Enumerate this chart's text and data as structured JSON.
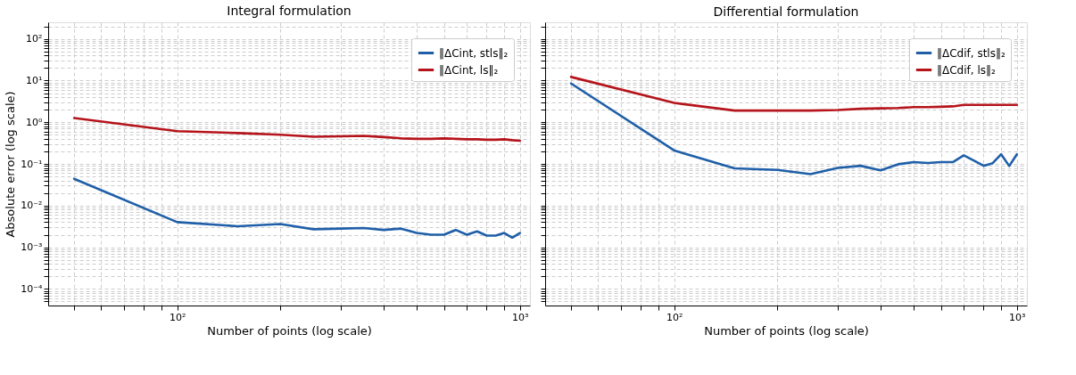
{
  "chart_data": [
    {
      "type": "line",
      "title": "Integral formulation",
      "xlabel": "Number of points (log scale)",
      "ylabel": "Absolute error (log scale)",
      "log": "xy",
      "grid": true,
      "legend": "top right",
      "marker": "none",
      "line_style": "solid",
      "x": [
        50,
        100,
        150,
        200,
        250,
        300,
        350,
        400,
        450,
        500,
        550,
        600,
        650,
        700,
        750,
        800,
        850,
        900,
        950,
        1000
      ],
      "series": [
        {
          "name": "‖ΔCint, stls‖₂",
          "color": "#1f5fa8",
          "values": [
            0.044,
            0.004,
            0.0032,
            0.0036,
            0.0027,
            0.0028,
            0.0029,
            0.0026,
            0.0028,
            0.0022,
            0.002,
            0.002,
            0.0026,
            0.002,
            0.0024,
            0.0019,
            0.0019,
            0.0022,
            0.0017,
            0.0022
          ]
        },
        {
          "name": "‖ΔCint, ls‖₂",
          "color": "#b5141b",
          "values": [
            1.26,
            0.61,
            0.55,
            0.5,
            0.45,
            0.46,
            0.47,
            0.44,
            0.41,
            0.4,
            0.4,
            0.41,
            0.4,
            0.39,
            0.39,
            0.38,
            0.38,
            0.39,
            0.37,
            0.36
          ]
        }
      ],
      "xlim": [
        42,
        1070
      ],
      "xticks": [
        {
          "value": 50,
          "label": null
        },
        {
          "value": 60,
          "label": null
        },
        {
          "value": 70,
          "label": null
        },
        {
          "value": 80,
          "label": null
        },
        {
          "value": 90,
          "label": null
        },
        {
          "value": 100,
          "label": "10²"
        },
        {
          "value": 200,
          "label": null
        },
        {
          "value": 300,
          "label": null
        },
        {
          "value": 400,
          "label": null
        },
        {
          "value": 500,
          "label": null
        },
        {
          "value": 600,
          "label": null
        },
        {
          "value": 700,
          "label": null
        },
        {
          "value": 800,
          "label": null
        },
        {
          "value": 900,
          "label": null
        },
        {
          "value": 1000,
          "label": "10³"
        }
      ],
      "ylim": [
        4e-05,
        250
      ],
      "yticks": [
        {
          "value": 5e-05,
          "label": null
        },
        {
          "value": 6e-05,
          "label": null
        },
        {
          "value": 7e-05,
          "label": null
        },
        {
          "value": 8e-05,
          "label": null
        },
        {
          "value": 9e-05,
          "label": null
        },
        {
          "value": 0.0001,
          "label": "10⁻⁴"
        },
        {
          "value": 0.0002,
          "label": null
        },
        {
          "value": 0.0003,
          "label": null
        },
        {
          "value": 0.0004,
          "label": null
        },
        {
          "value": 0.0005,
          "label": null
        },
        {
          "value": 0.0006,
          "label": null
        },
        {
          "value": 0.0007,
          "label": null
        },
        {
          "value": 0.0008,
          "label": null
        },
        {
          "value": 0.0009,
          "label": null
        },
        {
          "value": 0.001,
          "label": "10⁻³"
        },
        {
          "value": 0.002,
          "label": null
        },
        {
          "value": 0.003,
          "label": null
        },
        {
          "value": 0.004,
          "label": null
        },
        {
          "value": 0.005,
          "label": null
        },
        {
          "value": 0.006,
          "label": null
        },
        {
          "value": 0.007,
          "label": null
        },
        {
          "value": 0.008,
          "label": null
        },
        {
          "value": 0.009,
          "label": null
        },
        {
          "value": 0.01,
          "label": "10⁻²"
        },
        {
          "value": 0.02,
          "label": null
        },
        {
          "value": 0.03,
          "label": null
        },
        {
          "value": 0.04,
          "label": null
        },
        {
          "value": 0.05,
          "label": null
        },
        {
          "value": 0.06,
          "label": null
        },
        {
          "value": 0.07,
          "label": null
        },
        {
          "value": 0.08,
          "label": null
        },
        {
          "value": 0.09,
          "label": null
        },
        {
          "value": 0.1,
          "label": "10⁻¹"
        },
        {
          "value": 0.2,
          "label": null
        },
        {
          "value": 0.3,
          "label": null
        },
        {
          "value": 0.4,
          "label": null
        },
        {
          "value": 0.5,
          "label": null
        },
        {
          "value": 0.6,
          "label": null
        },
        {
          "value": 0.7,
          "label": null
        },
        {
          "value": 0.8,
          "label": null
        },
        {
          "value": 0.9,
          "label": null
        },
        {
          "value": 1,
          "label": "10⁰"
        },
        {
          "value": 2,
          "label": null
        },
        {
          "value": 3,
          "label": null
        },
        {
          "value": 4,
          "label": null
        },
        {
          "value": 5,
          "label": null
        },
        {
          "value": 6,
          "label": null
        },
        {
          "value": 7,
          "label": null
        },
        {
          "value": 8,
          "label": null
        },
        {
          "value": 9,
          "label": null
        },
        {
          "value": 10,
          "label": "10¹"
        },
        {
          "value": 20,
          "label": null
        },
        {
          "value": 30,
          "label": null
        },
        {
          "value": 40,
          "label": null
        },
        {
          "value": 50,
          "label": null
        },
        {
          "value": 60,
          "label": null
        },
        {
          "value": 70,
          "label": null
        },
        {
          "value": 80,
          "label": null
        },
        {
          "value": 90,
          "label": null
        },
        {
          "value": 100,
          "label": "10²"
        },
        {
          "value": 200,
          "label": null
        }
      ]
    },
    {
      "type": "line",
      "title": "Differential formulation",
      "xlabel": "Number of points (log scale)",
      "log": "xy",
      "grid": true,
      "legend": "top right",
      "marker": "none",
      "line_style": "solid",
      "tick_labels": "x",
      "x": [
        50,
        100,
        150,
        200,
        250,
        300,
        350,
        400,
        450,
        500,
        550,
        600,
        650,
        700,
        750,
        800,
        850,
        900,
        950,
        1000
      ],
      "series": [
        {
          "name": "‖ΔCdif, stls‖₂",
          "color": "#1f5fa8",
          "values": [
            8.5,
            0.21,
            0.078,
            0.072,
            0.057,
            0.08,
            0.09,
            0.07,
            0.098,
            0.11,
            0.105,
            0.11,
            0.11,
            0.16,
            0.12,
            0.09,
            0.104,
            0.17,
            0.089,
            0.17
          ]
        },
        {
          "name": "‖ΔCdif, ls‖₂",
          "color": "#b5141b",
          "values": [
            12.2,
            2.9,
            1.9,
            1.9,
            1.9,
            1.97,
            2.1,
            2.15,
            2.2,
            2.3,
            2.3,
            2.35,
            2.4,
            2.6,
            2.6,
            2.6,
            2.6,
            2.6,
            2.6,
            2.6
          ]
        }
      ],
      "xlim": [
        42,
        1070
      ],
      "xticks": [
        {
          "value": 50,
          "label": null
        },
        {
          "value": 60,
          "label": null
        },
        {
          "value": 70,
          "label": null
        },
        {
          "value": 80,
          "label": null
        },
        {
          "value": 90,
          "label": null
        },
        {
          "value": 100,
          "label": "10²"
        },
        {
          "value": 200,
          "label": null
        },
        {
          "value": 300,
          "label": null
        },
        {
          "value": 400,
          "label": null
        },
        {
          "value": 500,
          "label": null
        },
        {
          "value": 600,
          "label": null
        },
        {
          "value": 700,
          "label": null
        },
        {
          "value": 800,
          "label": null
        },
        {
          "value": 900,
          "label": null
        },
        {
          "value": 1000,
          "label": "10³"
        }
      ],
      "ylim": [
        4e-05,
        250
      ],
      "yticks": [
        {
          "value": 5e-05,
          "label": null
        },
        {
          "value": 6e-05,
          "label": null
        },
        {
          "value": 7e-05,
          "label": null
        },
        {
          "value": 8e-05,
          "label": null
        },
        {
          "value": 9e-05,
          "label": null
        },
        {
          "value": 0.0001,
          "label": null
        },
        {
          "value": 0.0002,
          "label": null
        },
        {
          "value": 0.0003,
          "label": null
        },
        {
          "value": 0.0004,
          "label": null
        },
        {
          "value": 0.0005,
          "label": null
        },
        {
          "value": 0.0006,
          "label": null
        },
        {
          "value": 0.0007,
          "label": null
        },
        {
          "value": 0.0008,
          "label": null
        },
        {
          "value": 0.0009,
          "label": null
        },
        {
          "value": 0.001,
          "label": null
        },
        {
          "value": 0.002,
          "label": null
        },
        {
          "value": 0.003,
          "label": null
        },
        {
          "value": 0.004,
          "label": null
        },
        {
          "value": 0.005,
          "label": null
        },
        {
          "value": 0.006,
          "label": null
        },
        {
          "value": 0.007,
          "label": null
        },
        {
          "value": 0.008,
          "label": null
        },
        {
          "value": 0.009,
          "label": null
        },
        {
          "value": 0.01,
          "label": null
        },
        {
          "value": 0.02,
          "label": null
        },
        {
          "value": 0.03,
          "label": null
        },
        {
          "value": 0.04,
          "label": null
        },
        {
          "value": 0.05,
          "label": null
        },
        {
          "value": 0.06,
          "label": null
        },
        {
          "value": 0.07,
          "label": null
        },
        {
          "value": 0.08,
          "label": null
        },
        {
          "value": 0.09,
          "label": null
        },
        {
          "value": 0.1,
          "label": null
        },
        {
          "value": 0.2,
          "label": null
        },
        {
          "value": 0.3,
          "label": null
        },
        {
          "value": 0.4,
          "label": null
        },
        {
          "value": 0.5,
          "label": null
        },
        {
          "value": 0.6,
          "label": null
        },
        {
          "value": 0.7,
          "label": null
        },
        {
          "value": 0.8,
          "label": null
        },
        {
          "value": 0.9,
          "label": null
        },
        {
          "value": 1,
          "label": null
        },
        {
          "value": 2,
          "label": null
        },
        {
          "value": 3,
          "label": null
        },
        {
          "value": 4,
          "label": null
        },
        {
          "value": 5,
          "label": null
        },
        {
          "value": 6,
          "label": null
        },
        {
          "value": 7,
          "label": null
        },
        {
          "value": 8,
          "label": null
        },
        {
          "value": 9,
          "label": null
        },
        {
          "value": 10,
          "label": null
        },
        {
          "value": 20,
          "label": null
        },
        {
          "value": 30,
          "label": null
        },
        {
          "value": 40,
          "label": null
        },
        {
          "value": 50,
          "label": null
        },
        {
          "value": 60,
          "label": null
        },
        {
          "value": 70,
          "label": null
        },
        {
          "value": 80,
          "label": null
        },
        {
          "value": 90,
          "label": null
        },
        {
          "value": 100,
          "label": null
        },
        {
          "value": 200,
          "label": null
        }
      ]
    }
  ]
}
